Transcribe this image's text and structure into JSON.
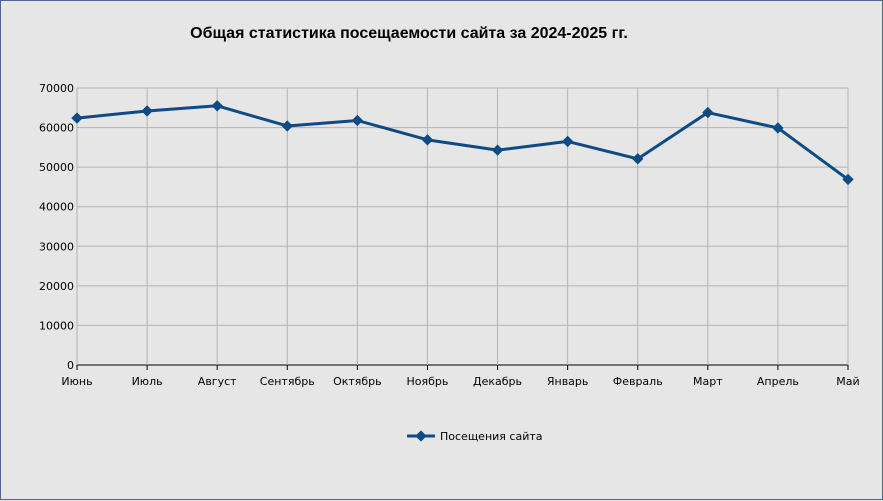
{
  "chart_data": {
    "type": "line",
    "title": "Общая статистика посещаемости сайта за 2024-2025 гг.",
    "categories": [
      "Июнь",
      "Июль",
      "Август",
      "Сентябрь",
      "Октябрь",
      "Ноябрь",
      "Декабрь",
      "Январь",
      "Февраль",
      "Март",
      "Апрель",
      "Май"
    ],
    "series": [
      {
        "name": "Посещения сайта",
        "values": [
          62400,
          64200,
          65500,
          60400,
          61800,
          56900,
          54300,
          56500,
          52100,
          63800,
          59900,
          46900
        ],
        "color": "#0e4a84"
      }
    ],
    "ylim": [
      0,
      70000
    ],
    "yticks": [
      "0",
      "10000",
      "20000",
      "30000",
      "40000",
      "50000",
      "60000",
      "70000"
    ],
    "grid": true,
    "legend_position": "bottom",
    "xlabel": "",
    "ylabel": ""
  }
}
